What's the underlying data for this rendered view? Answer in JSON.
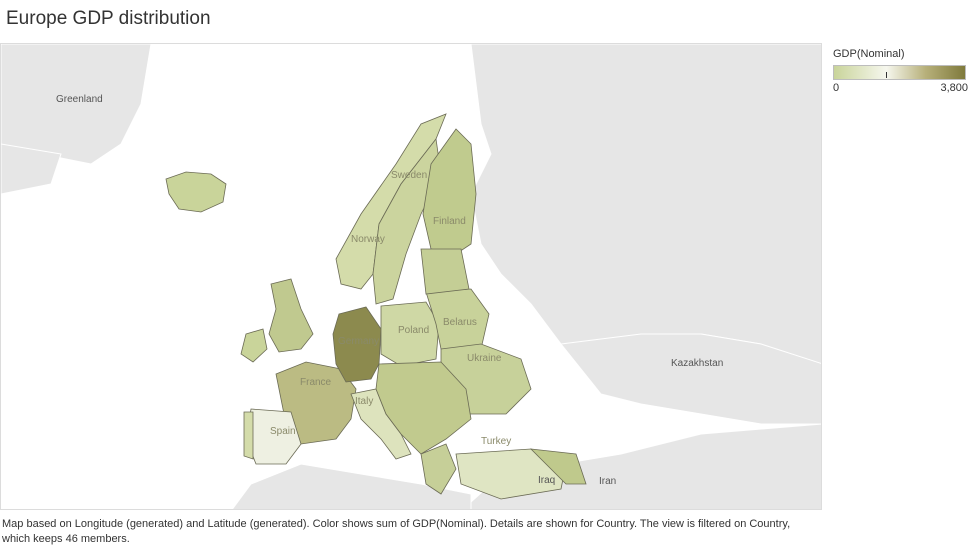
{
  "title": "Europe GDP distribution",
  "legend": {
    "title": "GDP(Nominal)",
    "min_label": "0",
    "max_label": "3,800",
    "colors": [
      "#c9d49a",
      "#f6f7ee",
      "#7f7a3c"
    ]
  },
  "map": {
    "background_labels": {
      "greenland": "Greenland",
      "kazakhstan": "Kazakhstan",
      "iraq": "Iraq",
      "iran": "Iran"
    },
    "country_labels": {
      "sweden": "Sweden",
      "finland": "Finland",
      "norway": "Norway",
      "poland": "Poland",
      "belarus": "Belarus",
      "germany": "Germany",
      "ukraine": "Ukraine",
      "france": "France",
      "italy": "Italy",
      "spain": "Spain",
      "turkey": "Turkey"
    },
    "colors": {
      "land": "#e6e6e6",
      "border": "#ffffff",
      "low": "#c9d49a",
      "mid": "#b7b07a",
      "high": "#8c8a4e"
    }
  },
  "caption": "Map based on Longitude (generated) and Latitude (generated).  Color shows sum of GDP(Nominal).  Details are shown for Country. The view is filtered on Country, which keeps 46 members."
}
